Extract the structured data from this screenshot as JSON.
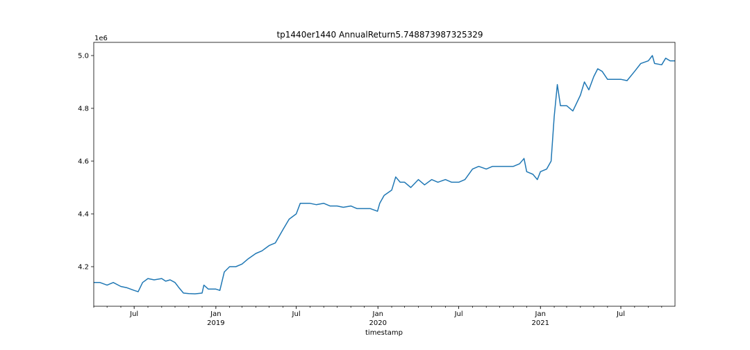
{
  "chart_data": {
    "type": "line",
    "title": "tp1440er1440 AnnualReturn5.748873987325329",
    "xlabel": "timestamp",
    "ylabel": "",
    "offset_text": "1e6",
    "ylim": [
      4.05,
      5.05
    ],
    "y_scale_factor": 1000000,
    "y_ticks": [
      4.2,
      4.4,
      4.6,
      4.8,
      5.0
    ],
    "y_tick_labels": [
      "4.2",
      "4.4",
      "4.6",
      "4.8",
      "5.0"
    ],
    "x_range": [
      "2018-04-01",
      "2021-10-31"
    ],
    "x_major_ticks": [
      {
        "date": "2018-07-01",
        "label": "Jul",
        "sublabel": ""
      },
      {
        "date": "2019-01-01",
        "label": "Jan",
        "sublabel": "2019"
      },
      {
        "date": "2019-07-01",
        "label": "Jul",
        "sublabel": ""
      },
      {
        "date": "2020-01-01",
        "label": "Jan",
        "sublabel": "2020"
      },
      {
        "date": "2020-07-01",
        "label": "Jul",
        "sublabel": ""
      },
      {
        "date": "2021-01-01",
        "label": "Jan",
        "sublabel": "2021"
      },
      {
        "date": "2021-07-01",
        "label": "Jul",
        "sublabel": ""
      }
    ],
    "grid": false,
    "series": [
      {
        "name": "",
        "color": "#1f77b4",
        "points": [
          [
            "2018-04-01",
            4.14
          ],
          [
            "2018-04-15",
            4.14
          ],
          [
            "2018-05-01",
            4.13
          ],
          [
            "2018-05-15",
            4.14
          ],
          [
            "2018-06-01",
            4.125
          ],
          [
            "2018-06-15",
            4.12
          ],
          [
            "2018-07-01",
            4.11
          ],
          [
            "2018-07-10",
            4.105
          ],
          [
            "2018-07-20",
            4.14
          ],
          [
            "2018-08-01",
            4.155
          ],
          [
            "2018-08-15",
            4.15
          ],
          [
            "2018-09-01",
            4.155
          ],
          [
            "2018-09-10",
            4.145
          ],
          [
            "2018-09-20",
            4.15
          ],
          [
            "2018-10-01",
            4.14
          ],
          [
            "2018-10-10",
            4.12
          ],
          [
            "2018-10-20",
            4.1
          ],
          [
            "2018-11-01",
            4.098
          ],
          [
            "2018-11-15",
            4.097
          ],
          [
            "2018-12-01",
            4.1
          ],
          [
            "2018-12-05",
            4.13
          ],
          [
            "2018-12-15",
            4.115
          ],
          [
            "2019-01-01",
            4.115
          ],
          [
            "2019-01-10",
            4.11
          ],
          [
            "2019-01-20",
            4.18
          ],
          [
            "2019-02-01",
            4.2
          ],
          [
            "2019-02-15",
            4.2
          ],
          [
            "2019-03-01",
            4.21
          ],
          [
            "2019-03-15",
            4.23
          ],
          [
            "2019-04-01",
            4.25
          ],
          [
            "2019-04-15",
            4.26
          ],
          [
            "2019-05-01",
            4.28
          ],
          [
            "2019-05-15",
            4.29
          ],
          [
            "2019-06-01",
            4.34
          ],
          [
            "2019-06-15",
            4.38
          ],
          [
            "2019-07-01",
            4.4
          ],
          [
            "2019-07-10",
            4.44
          ],
          [
            "2019-08-01",
            4.44
          ],
          [
            "2019-08-15",
            4.435
          ],
          [
            "2019-09-01",
            4.44
          ],
          [
            "2019-09-15",
            4.43
          ],
          [
            "2019-10-01",
            4.43
          ],
          [
            "2019-10-15",
            4.425
          ],
          [
            "2019-11-01",
            4.43
          ],
          [
            "2019-11-15",
            4.42
          ],
          [
            "2019-12-01",
            4.42
          ],
          [
            "2019-12-15",
            4.42
          ],
          [
            "2019-12-31",
            4.41
          ],
          [
            "2020-01-05",
            4.44
          ],
          [
            "2020-01-15",
            4.47
          ],
          [
            "2020-02-01",
            4.49
          ],
          [
            "2020-02-10",
            4.54
          ],
          [
            "2020-02-20",
            4.52
          ],
          [
            "2020-03-01",
            4.52
          ],
          [
            "2020-03-15",
            4.5
          ],
          [
            "2020-04-01",
            4.53
          ],
          [
            "2020-04-15",
            4.51
          ],
          [
            "2020-05-01",
            4.53
          ],
          [
            "2020-05-15",
            4.52
          ],
          [
            "2020-06-01",
            4.53
          ],
          [
            "2020-06-15",
            4.52
          ],
          [
            "2020-07-01",
            4.52
          ],
          [
            "2020-07-15",
            4.53
          ],
          [
            "2020-08-01",
            4.57
          ],
          [
            "2020-08-15",
            4.58
          ],
          [
            "2020-09-01",
            4.57
          ],
          [
            "2020-09-15",
            4.58
          ],
          [
            "2020-10-01",
            4.58
          ],
          [
            "2020-10-15",
            4.58
          ],
          [
            "2020-11-01",
            4.58
          ],
          [
            "2020-11-15",
            4.59
          ],
          [
            "2020-11-25",
            4.61
          ],
          [
            "2020-12-01",
            4.56
          ],
          [
            "2020-12-15",
            4.55
          ],
          [
            "2020-12-25",
            4.53
          ],
          [
            "2021-01-01",
            4.56
          ],
          [
            "2021-01-15",
            4.57
          ],
          [
            "2021-01-25",
            4.6
          ],
          [
            "2021-02-01",
            4.77
          ],
          [
            "2021-02-08",
            4.89
          ],
          [
            "2021-02-15",
            4.81
          ],
          [
            "2021-03-01",
            4.81
          ],
          [
            "2021-03-15",
            4.79
          ],
          [
            "2021-04-01",
            4.85
          ],
          [
            "2021-04-10",
            4.9
          ],
          [
            "2021-04-20",
            4.87
          ],
          [
            "2021-05-01",
            4.92
          ],
          [
            "2021-05-10",
            4.95
          ],
          [
            "2021-05-20",
            4.94
          ],
          [
            "2021-06-01",
            4.91
          ],
          [
            "2021-06-15",
            4.91
          ],
          [
            "2021-07-01",
            4.91
          ],
          [
            "2021-07-15",
            4.905
          ],
          [
            "2021-08-01",
            4.94
          ],
          [
            "2021-08-15",
            4.97
          ],
          [
            "2021-09-01",
            4.98
          ],
          [
            "2021-09-10",
            5.0
          ],
          [
            "2021-09-15",
            4.97
          ],
          [
            "2021-10-01",
            4.965
          ],
          [
            "2021-10-10",
            4.99
          ],
          [
            "2021-10-20",
            4.98
          ],
          [
            "2021-10-31",
            4.98
          ]
        ]
      }
    ]
  }
}
